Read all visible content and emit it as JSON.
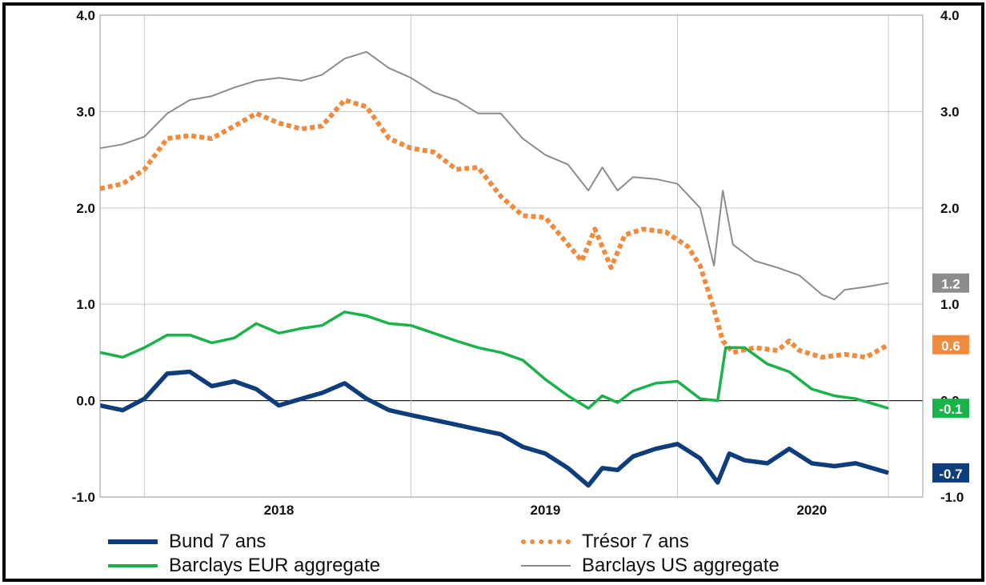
{
  "chart_data": {
    "type": "line",
    "title": "",
    "xlabel": "",
    "ylabel": "",
    "ylim": [
      -1.0,
      4.0
    ],
    "xlim": [
      "2017-05-01",
      "2020-06-01"
    ],
    "grid": true,
    "legend_position": "bottom",
    "y_ticks": [
      "4.0",
      "3.0",
      "2.0",
      "1.0",
      "0.0",
      "-1.0"
    ],
    "x_ticks": [
      {
        "label": "2018",
        "date": "2018-01-01"
      },
      {
        "label": "2019",
        "date": "2019-01-01"
      },
      {
        "label": "2020",
        "date": "2020-01-01"
      }
    ],
    "x_gridlines": [
      "2017-07-01",
      "2018-07-01",
      "2019-07-01",
      "2020-04-15"
    ],
    "series": [
      {
        "name": "Barclays US aggregate",
        "color": "#8c8c8c",
        "style": "thin",
        "end_label": "1.2",
        "points": [
          [
            "2017-05-01",
            2.62
          ],
          [
            "2017-06-01",
            2.66
          ],
          [
            "2017-07-01",
            2.74
          ],
          [
            "2017-08-01",
            2.98
          ],
          [
            "2017-09-01",
            3.12
          ],
          [
            "2017-10-01",
            3.16
          ],
          [
            "2017-11-01",
            3.25
          ],
          [
            "2017-12-01",
            3.32
          ],
          [
            "2018-01-01",
            3.35
          ],
          [
            "2018-02-01",
            3.32
          ],
          [
            "2018-03-01",
            3.38
          ],
          [
            "2018-04-01",
            3.55
          ],
          [
            "2018-05-01",
            3.62
          ],
          [
            "2018-06-01",
            3.45
          ],
          [
            "2018-07-01",
            3.35
          ],
          [
            "2018-08-01",
            3.2
          ],
          [
            "2018-09-01",
            3.12
          ],
          [
            "2018-10-01",
            2.98
          ],
          [
            "2018-11-01",
            2.98
          ],
          [
            "2018-12-01",
            2.72
          ],
          [
            "2019-01-01",
            2.55
          ],
          [
            "2019-02-01",
            2.45
          ],
          [
            "2019-03-01",
            2.18
          ],
          [
            "2019-03-20",
            2.42
          ],
          [
            "2019-04-10",
            2.18
          ],
          [
            "2019-05-01",
            2.32
          ],
          [
            "2019-06-01",
            2.3
          ],
          [
            "2019-07-01",
            2.25
          ],
          [
            "2019-08-01",
            2.0
          ],
          [
            "2019-08-20",
            1.4
          ],
          [
            "2019-09-01",
            2.18
          ],
          [
            "2019-09-15",
            1.62
          ],
          [
            "2019-10-15",
            1.45
          ],
          [
            "2019-11-15",
            1.38
          ],
          [
            "2019-12-15",
            1.3
          ],
          [
            "2020-01-15",
            1.1
          ],
          [
            "2020-02-01",
            1.05
          ],
          [
            "2020-02-15",
            1.15
          ],
          [
            "2020-03-15",
            1.18
          ],
          [
            "2020-04-15",
            1.22
          ]
        ]
      },
      {
        "name": "Trésor 7 ans",
        "color": "#f08a3c",
        "style": "dotted",
        "end_label": "0.6",
        "points": [
          [
            "2017-05-01",
            2.2
          ],
          [
            "2017-06-01",
            2.25
          ],
          [
            "2017-07-01",
            2.4
          ],
          [
            "2017-08-01",
            2.72
          ],
          [
            "2017-09-01",
            2.75
          ],
          [
            "2017-10-01",
            2.72
          ],
          [
            "2017-11-01",
            2.85
          ],
          [
            "2017-12-01",
            2.98
          ],
          [
            "2018-01-01",
            2.88
          ],
          [
            "2018-02-01",
            2.82
          ],
          [
            "2018-03-01",
            2.85
          ],
          [
            "2018-04-01",
            3.12
          ],
          [
            "2018-05-01",
            3.05
          ],
          [
            "2018-06-01",
            2.72
          ],
          [
            "2018-07-01",
            2.62
          ],
          [
            "2018-08-01",
            2.58
          ],
          [
            "2018-09-01",
            2.4
          ],
          [
            "2018-10-01",
            2.42
          ],
          [
            "2018-11-01",
            2.12
          ],
          [
            "2018-12-01",
            1.92
          ],
          [
            "2019-01-01",
            1.9
          ],
          [
            "2019-02-01",
            1.62
          ],
          [
            "2019-02-20",
            1.45
          ],
          [
            "2019-03-10",
            1.78
          ],
          [
            "2019-04-01",
            1.38
          ],
          [
            "2019-04-20",
            1.72
          ],
          [
            "2019-05-15",
            1.78
          ],
          [
            "2019-06-15",
            1.75
          ],
          [
            "2019-07-15",
            1.6
          ],
          [
            "2019-08-01",
            1.4
          ],
          [
            "2019-08-20",
            0.95
          ],
          [
            "2019-09-01",
            0.62
          ],
          [
            "2019-09-15",
            0.5
          ],
          [
            "2019-10-15",
            0.55
          ],
          [
            "2019-11-15",
            0.52
          ],
          [
            "2019-12-01",
            0.62
          ],
          [
            "2019-12-15",
            0.52
          ],
          [
            "2020-01-15",
            0.45
          ],
          [
            "2020-02-15",
            0.48
          ],
          [
            "2020-03-15",
            0.45
          ],
          [
            "2020-04-15",
            0.58
          ]
        ]
      },
      {
        "name": "Barclays EUR aggregate",
        "color": "#1ab24b",
        "style": "medium",
        "end_label": "-0.1",
        "points": [
          [
            "2017-05-01",
            0.5
          ],
          [
            "2017-06-01",
            0.45
          ],
          [
            "2017-07-01",
            0.55
          ],
          [
            "2017-08-01",
            0.68
          ],
          [
            "2017-09-01",
            0.68
          ],
          [
            "2017-10-01",
            0.6
          ],
          [
            "2017-11-01",
            0.65
          ],
          [
            "2017-12-01",
            0.8
          ],
          [
            "2018-01-01",
            0.7
          ],
          [
            "2018-02-01",
            0.75
          ],
          [
            "2018-03-01",
            0.78
          ],
          [
            "2018-04-01",
            0.92
          ],
          [
            "2018-05-01",
            0.88
          ],
          [
            "2018-06-01",
            0.8
          ],
          [
            "2018-07-01",
            0.78
          ],
          [
            "2018-08-01",
            0.7
          ],
          [
            "2018-09-01",
            0.62
          ],
          [
            "2018-10-01",
            0.55
          ],
          [
            "2018-11-01",
            0.5
          ],
          [
            "2018-12-01",
            0.42
          ],
          [
            "2019-01-01",
            0.22
          ],
          [
            "2019-02-01",
            0.05
          ],
          [
            "2019-03-01",
            -0.08
          ],
          [
            "2019-03-20",
            0.05
          ],
          [
            "2019-04-10",
            -0.02
          ],
          [
            "2019-05-01",
            0.1
          ],
          [
            "2019-06-01",
            0.18
          ],
          [
            "2019-07-01",
            0.2
          ],
          [
            "2019-08-01",
            0.02
          ],
          [
            "2019-08-25",
            0.0
          ],
          [
            "2019-09-05",
            0.55
          ],
          [
            "2019-10-01",
            0.55
          ],
          [
            "2019-11-01",
            0.38
          ],
          [
            "2019-12-01",
            0.3
          ],
          [
            "2020-01-01",
            0.12
          ],
          [
            "2020-02-01",
            0.05
          ],
          [
            "2020-03-01",
            0.02
          ],
          [
            "2020-04-15",
            -0.08
          ]
        ]
      },
      {
        "name": "Bund 7 ans",
        "color": "#0d3d7a",
        "style": "thick",
        "end_label": "-0.7",
        "points": [
          [
            "2017-05-01",
            -0.05
          ],
          [
            "2017-06-01",
            -0.1
          ],
          [
            "2017-07-01",
            0.02
          ],
          [
            "2017-08-01",
            0.28
          ],
          [
            "2017-09-01",
            0.3
          ],
          [
            "2017-10-01",
            0.15
          ],
          [
            "2017-11-01",
            0.2
          ],
          [
            "2017-12-01",
            0.12
          ],
          [
            "2018-01-01",
            -0.05
          ],
          [
            "2018-02-01",
            0.02
          ],
          [
            "2018-03-01",
            0.08
          ],
          [
            "2018-04-01",
            0.18
          ],
          [
            "2018-05-01",
            0.02
          ],
          [
            "2018-06-01",
            -0.1
          ],
          [
            "2018-07-01",
            -0.15
          ],
          [
            "2018-08-01",
            -0.2
          ],
          [
            "2018-09-01",
            -0.25
          ],
          [
            "2018-10-01",
            -0.3
          ],
          [
            "2018-11-01",
            -0.35
          ],
          [
            "2018-12-01",
            -0.48
          ],
          [
            "2019-01-01",
            -0.55
          ],
          [
            "2019-02-01",
            -0.7
          ],
          [
            "2019-03-01",
            -0.88
          ],
          [
            "2019-03-20",
            -0.7
          ],
          [
            "2019-04-10",
            -0.72
          ],
          [
            "2019-05-01",
            -0.58
          ],
          [
            "2019-06-01",
            -0.5
          ],
          [
            "2019-07-01",
            -0.45
          ],
          [
            "2019-08-01",
            -0.6
          ],
          [
            "2019-08-25",
            -0.85
          ],
          [
            "2019-09-10",
            -0.55
          ],
          [
            "2019-10-01",
            -0.62
          ],
          [
            "2019-11-01",
            -0.65
          ],
          [
            "2019-12-01",
            -0.5
          ],
          [
            "2020-01-01",
            -0.65
          ],
          [
            "2020-02-01",
            -0.68
          ],
          [
            "2020-03-01",
            -0.65
          ],
          [
            "2020-04-15",
            -0.75
          ]
        ]
      }
    ]
  },
  "legend": [
    {
      "label": "Bund 7 ans",
      "color": "#0d3d7a",
      "style": "thick"
    },
    {
      "label": "Trésor 7 ans",
      "color": "#f08a3c",
      "style": "dotted"
    },
    {
      "label": "Barclays EUR aggregate",
      "color": "#1ab24b",
      "style": "medium"
    },
    {
      "label": "Barclays US aggregate",
      "color": "#8c8c8c",
      "style": "thin"
    }
  ]
}
